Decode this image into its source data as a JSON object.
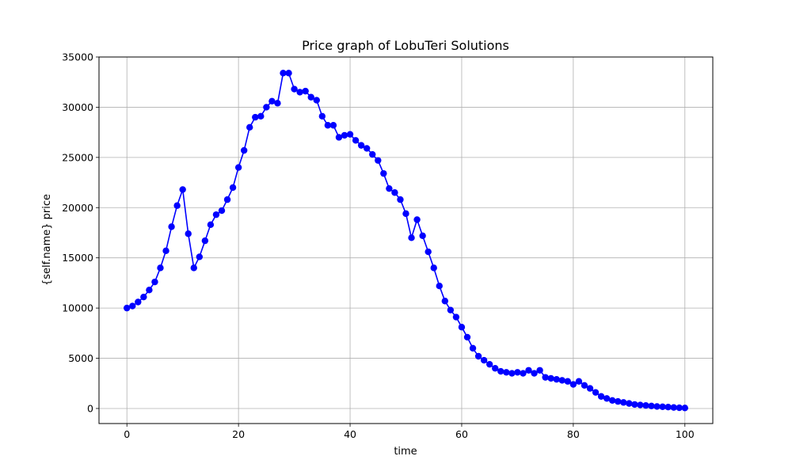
{
  "chart_data": {
    "type": "line",
    "title": "Price graph of LobuTeri Solutions",
    "xlabel": "time",
    "ylabel": "{self.name} price",
    "xlim": [
      -5,
      105
    ],
    "ylim": [
      -1500,
      35000
    ],
    "xticks": [
      0,
      20,
      40,
      60,
      80,
      100
    ],
    "yticks": [
      0,
      5000,
      10000,
      15000,
      20000,
      25000,
      30000,
      35000
    ],
    "xtick_labels": [
      "0",
      "20",
      "40",
      "60",
      "80",
      "100"
    ],
    "ytick_labels": [
      "0",
      "5000",
      "10000",
      "15000",
      "20000",
      "25000",
      "30000",
      "35000"
    ],
    "grid": true,
    "series": [
      {
        "color": "#0000ff",
        "marker": "circle",
        "x": [
          0,
          1,
          2,
          3,
          4,
          5,
          6,
          7,
          8,
          9,
          10,
          11,
          12,
          13,
          14,
          15,
          16,
          17,
          18,
          19,
          20,
          21,
          22,
          23,
          24,
          25,
          26,
          27,
          28,
          29,
          30,
          31,
          32,
          33,
          34,
          35,
          36,
          37,
          38,
          39,
          40,
          41,
          42,
          43,
          44,
          45,
          46,
          47,
          48,
          49,
          50,
          51,
          52,
          53,
          54,
          55,
          56,
          57,
          58,
          59,
          60,
          61,
          62,
          63,
          64,
          65,
          66,
          67,
          68,
          69,
          70,
          71,
          72,
          73,
          74,
          75,
          76,
          77,
          78,
          79,
          80,
          81,
          82,
          83,
          84,
          85,
          86,
          87,
          88,
          89,
          90,
          91,
          92,
          93,
          94,
          95,
          96,
          97,
          98,
          99,
          100
        ],
        "y": [
          10000,
          10200,
          10600,
          11100,
          11800,
          12600,
          14000,
          15700,
          18100,
          20200,
          21800,
          17400,
          14000,
          15100,
          16700,
          18300,
          19300,
          19700,
          20800,
          22000,
          24000,
          25700,
          28000,
          29000,
          29100,
          30000,
          30600,
          30400,
          33400,
          33400,
          31800,
          31500,
          31600,
          31000,
          30700,
          29100,
          28200,
          28200,
          27000,
          27200,
          27300,
          26700,
          26200,
          25900,
          25300,
          24700,
          23400,
          21900,
          21500,
          20800,
          19400,
          17000,
          18800,
          17200,
          15600,
          14000,
          12200,
          10700,
          9800,
          9100,
          8100,
          7100,
          6000,
          5200,
          4800,
          4400,
          4000,
          3700,
          3600,
          3500,
          3600,
          3500,
          3800,
          3500,
          3800,
          3100,
          3000,
          2900,
          2800,
          2700,
          2400,
          2700,
          2300,
          2000,
          1600,
          1200,
          1000,
          800,
          700,
          600,
          500,
          400,
          350,
          300,
          250,
          200,
          170,
          140,
          100,
          70,
          50
        ]
      }
    ]
  }
}
